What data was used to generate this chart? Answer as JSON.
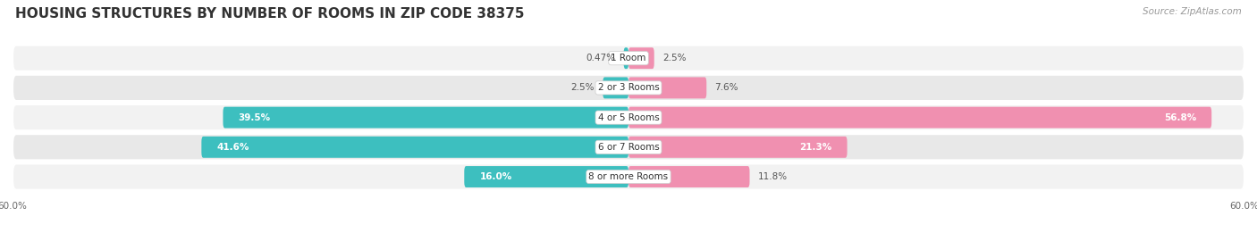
{
  "title": "HOUSING STRUCTURES BY NUMBER OF ROOMS IN ZIP CODE 38375",
  "source": "Source: ZipAtlas.com",
  "categories": [
    "1 Room",
    "2 or 3 Rooms",
    "4 or 5 Rooms",
    "6 or 7 Rooms",
    "8 or more Rooms"
  ],
  "owner_values": [
    0.47,
    2.5,
    39.5,
    41.6,
    16.0
  ],
  "renter_values": [
    2.5,
    7.6,
    56.8,
    21.3,
    11.8
  ],
  "owner_color": "#3DBFBF",
  "renter_color": "#F090B0",
  "axis_max": 60.0,
  "row_bg_light": "#F2F2F2",
  "row_bg_dark": "#E8E8E8",
  "background_color": "#FFFFFF",
  "title_fontsize": 11,
  "source_fontsize": 7.5,
  "bar_label_fontsize": 7.5,
  "cat_label_fontsize": 7.5,
  "tick_fontsize": 7.5
}
